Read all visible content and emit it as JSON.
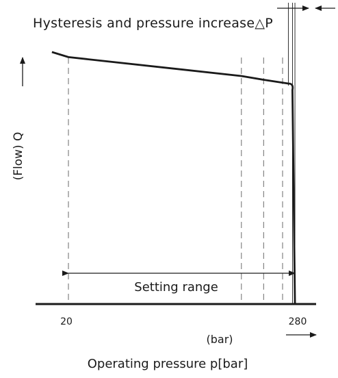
{
  "chart_data": {
    "type": "line",
    "title": "Hysteresis and pressure increase△P",
    "ylabel": "(Flow) Q",
    "xlabel": "Operating pressure p[bar]",
    "x_unit_label": "(bar)",
    "x_ticks": [
      20,
      280
    ],
    "grid": false,
    "series": [
      {
        "x": [
          0,
          20,
          230,
          257,
          287,
          292,
          295
        ],
        "y": [
          100,
          98,
          90.5,
          89,
          87.5,
          85,
          0
        ]
      }
    ],
    "setting_range": {
      "label": "Setting range",
      "from": 20,
      "to": 295
    },
    "marker_lines_x": [
      20,
      230,
      257,
      280
    ],
    "hysteresis_band_x": [
      287,
      292,
      295
    ]
  }
}
